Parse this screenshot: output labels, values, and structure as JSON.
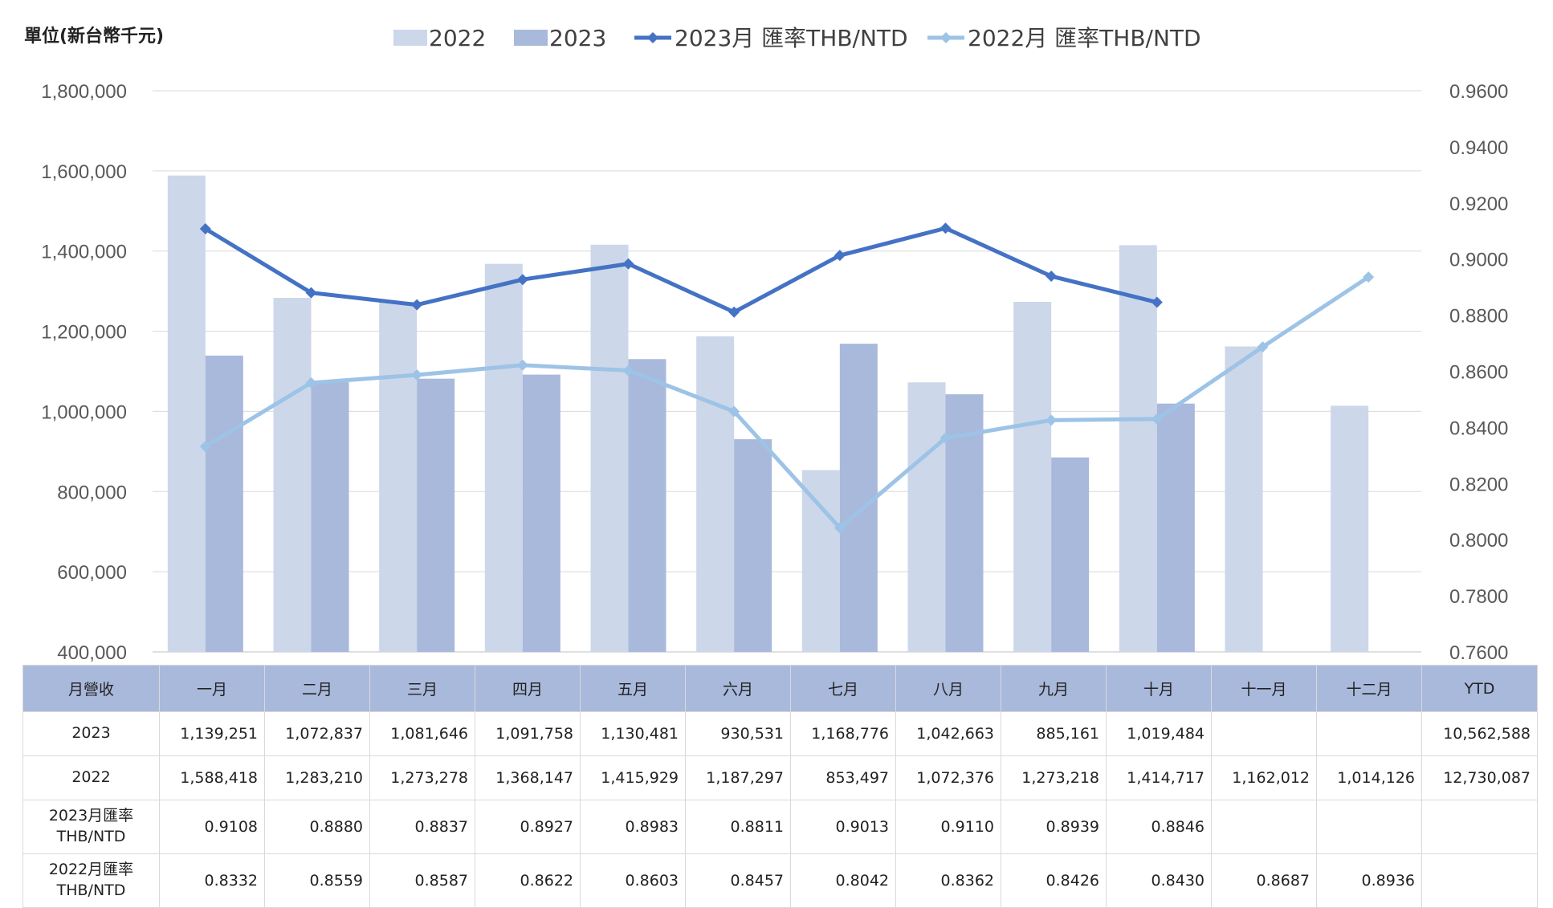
{
  "chart_data": {
    "type": "bar",
    "unit_label": "單位(新台幣千元)",
    "categories": [
      "一月",
      "二月",
      "三月",
      "四月",
      "五月",
      "六月",
      "七月",
      "八月",
      "九月",
      "十月",
      "十一月",
      "十二月"
    ],
    "series": [
      {
        "name": "2022",
        "type": "bar",
        "axis": "left",
        "color": "#ccd7ea",
        "values": [
          1588418,
          1283210,
          1273278,
          1368147,
          1415929,
          1187297,
          853497,
          1072376,
          1273218,
          1414717,
          1162012,
          1014126
        ]
      },
      {
        "name": "2023",
        "type": "bar",
        "axis": "left",
        "color": "#a9b9db",
        "values": [
          1139251,
          1072837,
          1081646,
          1091758,
          1130481,
          930531,
          1168776,
          1042663,
          885161,
          1019484,
          null,
          null
        ]
      },
      {
        "name": "2023月 匯率THB/NTD",
        "type": "line",
        "axis": "right",
        "color": "#4472c4",
        "values": [
          0.9108,
          0.888,
          0.8837,
          0.8927,
          0.8983,
          0.8811,
          0.9013,
          0.911,
          0.8939,
          0.8846,
          null,
          null
        ]
      },
      {
        "name": "2022月 匯率THB/NTD",
        "type": "line",
        "axis": "right",
        "color": "#9dc3e6",
        "values": [
          0.8332,
          0.8559,
          0.8587,
          0.8622,
          0.8603,
          0.8457,
          0.8042,
          0.8362,
          0.8426,
          0.843,
          0.8687,
          0.8936
        ]
      }
    ],
    "y_left": {
      "min": 400000,
      "max": 1800000,
      "ticks": [
        "400,000",
        "600,000",
        "800,000",
        "1,000,000",
        "1,200,000",
        "1,400,000",
        "1,600,000",
        "1,800,000"
      ]
    },
    "y_right": {
      "min": 0.76,
      "max": 0.96,
      "ticks": [
        "0.7600",
        "0.7800",
        "0.8000",
        "0.8200",
        "0.8400",
        "0.8600",
        "0.8800",
        "0.9000",
        "0.9200",
        "0.9400",
        "0.9600"
      ]
    },
    "grid": true,
    "legend_position": "top"
  },
  "table": {
    "header": [
      "月營收",
      "一月",
      "二月",
      "三月",
      "四月",
      "五月",
      "六月",
      "七月",
      "八月",
      "九月",
      "十月",
      "十一月",
      "十二月",
      "YTD"
    ],
    "rows": [
      {
        "label": "2023",
        "cells": [
          "1,139,251",
          "1,072,837",
          "1,081,646",
          "1,091,758",
          "1,130,481",
          "930,531",
          "1,168,776",
          "1,042,663",
          "885,161",
          "1,019,484",
          "",
          "",
          "10,562,588"
        ]
      },
      {
        "label": "2022",
        "cells": [
          "1,588,418",
          "1,283,210",
          "1,273,278",
          "1,368,147",
          "1,415,929",
          "1,187,297",
          "853,497",
          "1,072,376",
          "1,273,218",
          "1,414,717",
          "1,162,012",
          "1,014,126",
          "12,730,087"
        ]
      },
      {
        "label": "2023月匯率 THB/NTD",
        "cells": [
          "0.9108",
          "0.8880",
          "0.8837",
          "0.8927",
          "0.8983",
          "0.8811",
          "0.9013",
          "0.9110",
          "0.8939",
          "0.8846",
          "",
          "",
          ""
        ]
      },
      {
        "label": "2022月匯率 THB/NTD",
        "cells": [
          "0.8332",
          "0.8559",
          "0.8587",
          "0.8622",
          "0.8603",
          "0.8457",
          "0.8042",
          "0.8362",
          "0.8426",
          "0.8430",
          "0.8687",
          "0.8936",
          ""
        ]
      }
    ]
  }
}
